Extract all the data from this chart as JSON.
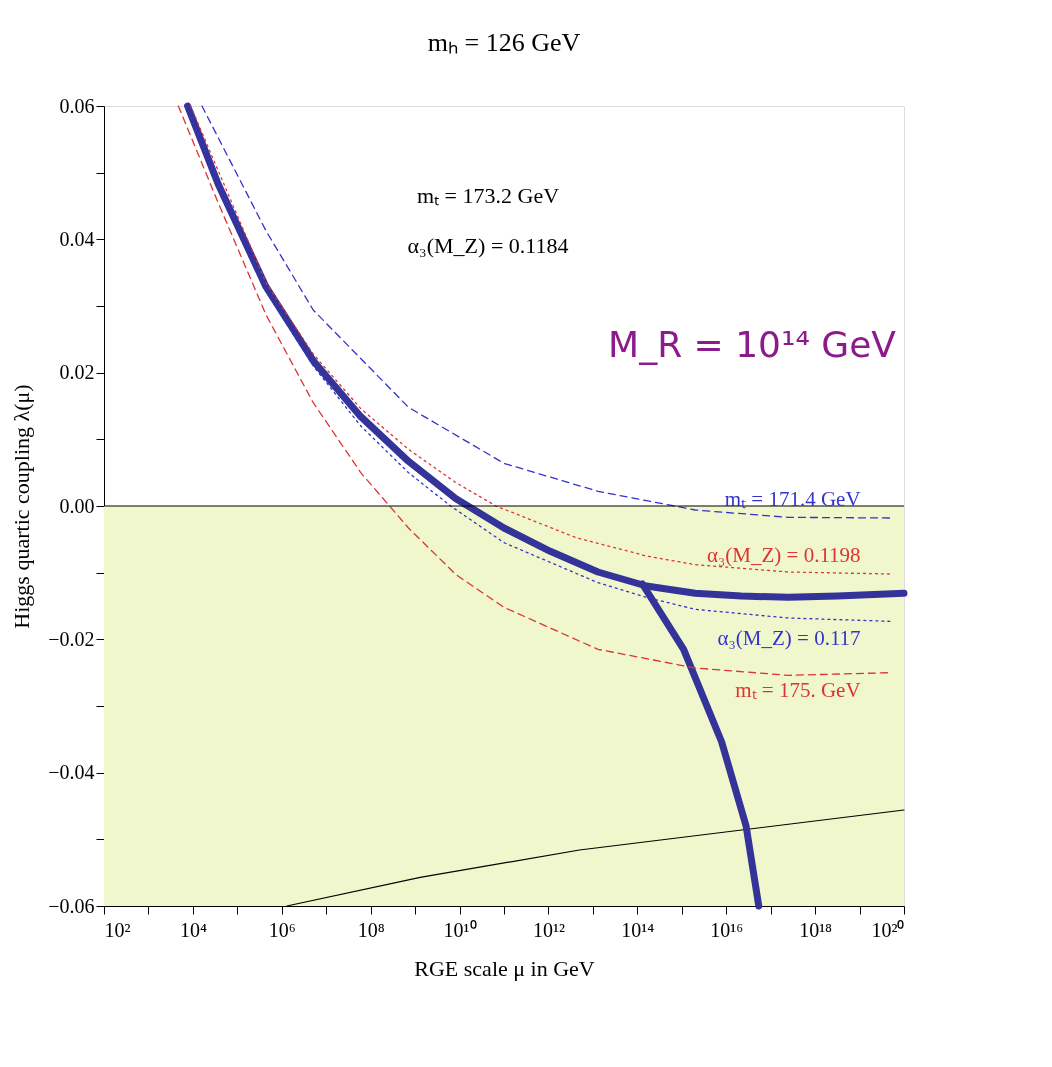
{
  "chart_data": {
    "type": "line",
    "title": "mₕ = 126 GeV",
    "xlabel": "RGE scale μ in GeV",
    "ylabel": "Higgs quartic coupling λ(μ)",
    "log": "x",
    "grid": false,
    "xlim": [
      100.0,
      1e+20
    ],
    "ylim": [
      -0.06,
      0.06
    ],
    "xticks": [
      {
        "value": 100.0,
        "label": "10²"
      },
      {
        "value": 1000.0,
        "label": null
      },
      {
        "value": 10000.0,
        "label": "10⁴"
      },
      {
        "value": 100000.0,
        "label": null
      },
      {
        "value": 1000000.0,
        "label": "10⁶"
      },
      {
        "value": 10000000.0,
        "label": null
      },
      {
        "value": 100000000.0,
        "label": "10⁸"
      },
      {
        "value": 1000000000.0,
        "label": null
      },
      {
        "value": 10000000000.0,
        "label": "10¹⁰"
      },
      {
        "value": 100000000000.0,
        "label": null
      },
      {
        "value": 1000000000000.0,
        "label": "10¹²"
      },
      {
        "value": 10000000000000.0,
        "label": null
      },
      {
        "value": 100000000000000.0,
        "label": "10¹⁴"
      },
      {
        "value": 1000000000000000.0,
        "label": null
      },
      {
        "value": 1e+16,
        "label": "10¹⁶"
      },
      {
        "value": 1e+17,
        "label": null
      },
      {
        "value": 1e+18,
        "label": "10¹⁸"
      },
      {
        "value": 1e+19,
        "label": null
      },
      {
        "value": 1e+20,
        "label": "10²⁰"
      }
    ],
    "yticks": [
      {
        "value": -0.06,
        "label": "−0.06"
      },
      {
        "value": -0.05,
        "label": null
      },
      {
        "value": -0.04,
        "label": "−0.04"
      },
      {
        "value": -0.03,
        "label": null
      },
      {
        "value": -0.02,
        "label": "−0.02"
      },
      {
        "value": -0.01,
        "label": null
      },
      {
        "value": 0,
        "label": "0.00"
      },
      {
        "value": 0.01,
        "label": null
      },
      0.02,
      {
        "value": 0.03,
        "label": null
      },
      0.04,
      {
        "value": 0.05,
        "label": null
      },
      0.06
    ],
    "bands": [
      {
        "axis": "y",
        "from": 0,
        "to": -0.06,
        "color": "#f0f7cc"
      }
    ],
    "ref_lines": [
      {
        "axis": "y",
        "value": 0,
        "color": "#000000"
      }
    ],
    "series": [
      {
        "type": "line",
        "color": "#000000",
        "line_style": "solid",
        "x": [
          1300000.0,
          1300000000.0,
          5000000000000.0,
          1e+20
        ],
        "values": [
          -0.06,
          -0.0557,
          -0.0516,
          -0.0456
        ]
      },
      {
        "color": "#333399",
        "line_style": "solid",
        "x": [
          7600.0,
          37000.0,
          440000.0,
          5100000.0,
          60000000.0,
          710000000.0,
          8300000000.0,
          100000000000.0,
          1100000000000.0,
          13000000000000.0,
          160000000000000.0,
          2000000000000000.0,
          2.2e+16,
          2.5e+17,
          3.2e+18,
          1e+20
        ],
        "values": [
          0.06,
          0.0483,
          0.0329,
          0.0218,
          0.0134,
          0.0067,
          0.0011,
          -0.0033,
          -0.0068,
          -0.0099,
          -0.012,
          -0.0131,
          -0.0135,
          -0.0137,
          -0.0135,
          -0.0131
        ]
      },
      {
        "color": "#333399",
        "line_style": "solid",
        "x": [
          130000000000000.0,
          1100000000000000.0,
          7900000000000000.0,
          2.8e+16,
          5.4e+16
        ],
        "values": [
          -0.0117,
          -0.0215,
          -0.0354,
          -0.048,
          -0.06
        ]
      },
      {
        "name": "mₜ = 171.4 GeV",
        "color": "#3333cc",
        "line_style": "dashed",
        "x": [
          16000.0,
          440000.0,
          5100000.0,
          710000000.0,
          100000000000.0,
          13000000000000.0,
          2000000000000000.0,
          2.5e+17,
          5e+19
        ],
        "values": [
          0.06,
          0.0413,
          0.0294,
          0.0148,
          0.0064,
          0.0022,
          -0.0006,
          -0.0017,
          -0.0018
        ]
      },
      {
        "name": "α₃(M_Z) = 0.117",
        "color": "#3333cc",
        "line_style": "dotted",
        "x": [
          7100.0,
          440000.0,
          5100000.0,
          60000000.0,
          710000000.0,
          6300000000.0,
          100000000000.0,
          13000000000000.0,
          160000000000000.0,
          2000000000000000.0,
          2.5e+17,
          5e+19
        ],
        "values": [
          0.06,
          0.0322,
          0.021,
          0.012,
          0.005,
          0,
          -0.0055,
          -0.0115,
          -0.0137,
          -0.0155,
          -0.0168,
          -0.0173
        ]
      },
      {
        "name": "α₃(M_Z) = 0.1198",
        "color": "#dd3333",
        "line_style": "dotted",
        "x": [
          8900.0,
          440000.0,
          5100000.0,
          60000000.0,
          710000000.0,
          8300000000.0,
          66000000000.0,
          4000000000000.0,
          160000000000000.0,
          2000000000000000.0,
          2.5e+17,
          5e+19
        ],
        "values": [
          0.06,
          0.0335,
          0.0228,
          0.0146,
          0.0085,
          0.0035,
          0,
          -0.0047,
          -0.0075,
          -0.0088,
          -0.0099,
          -0.0102
        ]
      },
      {
        "name": "mₜ = 175. GeV",
        "color": "#dd3333",
        "line_style": "dashed",
        "x": [
          4700.0,
          37000.0,
          440000.0,
          5100000.0,
          60000000.0,
          710000000.0,
          8300000000.0,
          100000000000.0,
          13000000000000.0,
          2000000000000000.0,
          2.5e+17,
          5e+19
        ],
        "values": [
          0.06,
          0.0455,
          0.0287,
          0.0155,
          0.005,
          -0.0033,
          -0.0103,
          -0.0152,
          -0.0215,
          -0.0243,
          -0.0254,
          -0.025
        ]
      }
    ],
    "annotations": [
      "mₜ = 173.2 GeV",
      "α₃(M_Z) = 0.1184",
      "M_R = 10¹⁴ GeV"
    ]
  }
}
